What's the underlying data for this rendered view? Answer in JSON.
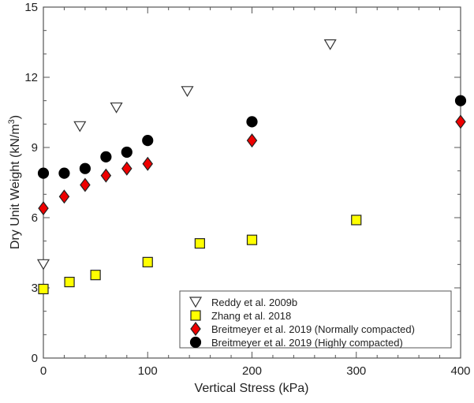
{
  "chart_data": {
    "type": "scatter",
    "title": "",
    "xlabel": "Vertical Stress (kPa)",
    "ylabel_main": "Dry Unit Weight (kN/m",
    "ylabel_sup": "3",
    "ylabel_end": ")",
    "xlim": [
      0,
      400
    ],
    "ylim": [
      0,
      15
    ],
    "xticks": [
      0,
      100,
      200,
      300,
      400
    ],
    "yticks": [
      0,
      3,
      6,
      9,
      12,
      15
    ],
    "grid": false,
    "legend_position": "bottom-right",
    "series": [
      {
        "name": "Reddy et al. 2009b",
        "marker": "triangle-down",
        "fill": "#ffffff",
        "stroke": "#333333",
        "x": [
          0,
          35,
          70,
          138,
          275
        ],
        "y": [
          4.0,
          9.9,
          10.7,
          11.4,
          13.4
        ]
      },
      {
        "name": "Zhang et al. 2018",
        "marker": "square",
        "fill": "#ffff00",
        "stroke": "#222222",
        "x": [
          0,
          25,
          50,
          100,
          150,
          200,
          300
        ],
        "y": [
          2.95,
          3.25,
          3.55,
          4.1,
          4.9,
          5.05,
          5.9
        ]
      },
      {
        "name": "Breitmeyer et al. 2019 (Normally compacted)",
        "marker": "diamond",
        "fill": "#ee0000",
        "stroke": "#222222",
        "x": [
          0,
          20,
          40,
          60,
          80,
          100,
          200,
          400
        ],
        "y": [
          6.4,
          6.9,
          7.4,
          7.8,
          8.1,
          8.3,
          9.3,
          10.1
        ]
      },
      {
        "name": "Breitmeyer et al. 2019 (Highly compacted)",
        "marker": "circle",
        "fill": "#000000",
        "stroke": "#000000",
        "x": [
          0,
          20,
          40,
          60,
          80,
          100,
          200,
          400
        ],
        "y": [
          7.9,
          7.9,
          8.1,
          8.6,
          8.8,
          9.3,
          10.1,
          11.0
        ]
      }
    ]
  }
}
